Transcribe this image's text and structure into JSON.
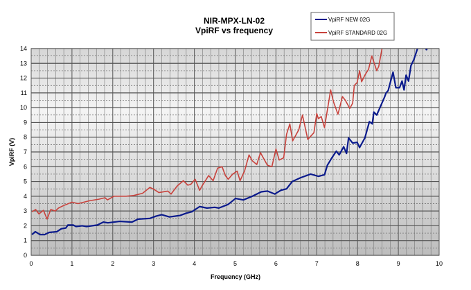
{
  "chart_data": {
    "type": "line",
    "title": "NIR-MPX-LN-02",
    "subtitle": "VpiRF vs frequency",
    "xlabel": "Frequency (GHz)",
    "ylabel": "VpiRF (V)",
    "xlim": [
      0,
      10
    ],
    "ylim": [
      0,
      14
    ],
    "xticks": [
      0,
      1,
      2,
      3,
      4,
      5,
      6,
      7,
      8,
      9,
      10
    ],
    "yticks": [
      0,
      1,
      2,
      3,
      4,
      5,
      6,
      7,
      8,
      9,
      10,
      11,
      12,
      13,
      14
    ],
    "grid": true,
    "legend_position": "top-right",
    "series": [
      {
        "name": "VpiRF NEW 02G",
        "color": "#0a1a8c",
        "points": [
          [
            0.02,
            1.4
          ],
          [
            0.1,
            1.6
          ],
          [
            0.22,
            1.4
          ],
          [
            0.33,
            1.4
          ],
          [
            0.44,
            1.55
          ],
          [
            0.63,
            1.6
          ],
          [
            0.74,
            1.8
          ],
          [
            0.85,
            1.85
          ],
          [
            0.9,
            2.05
          ],
          [
            1.03,
            2.05
          ],
          [
            1.1,
            1.95
          ],
          [
            1.25,
            2.0
          ],
          [
            1.36,
            1.95
          ],
          [
            1.62,
            2.05
          ],
          [
            1.77,
            2.25
          ],
          [
            1.88,
            2.2
          ],
          [
            2.17,
            2.3
          ],
          [
            2.47,
            2.25
          ],
          [
            2.62,
            2.45
          ],
          [
            2.91,
            2.5
          ],
          [
            3.06,
            2.65
          ],
          [
            3.2,
            2.75
          ],
          [
            3.39,
            2.6
          ],
          [
            3.65,
            2.7
          ],
          [
            3.8,
            2.85
          ],
          [
            3.94,
            2.95
          ],
          [
            4.13,
            3.3
          ],
          [
            4.31,
            3.2
          ],
          [
            4.5,
            3.25
          ],
          [
            4.6,
            3.2
          ],
          [
            4.83,
            3.45
          ],
          [
            5.01,
            3.85
          ],
          [
            5.2,
            3.75
          ],
          [
            5.42,
            4.0
          ],
          [
            5.64,
            4.3
          ],
          [
            5.79,
            4.35
          ],
          [
            5.97,
            4.15
          ],
          [
            6.12,
            4.4
          ],
          [
            6.26,
            4.5
          ],
          [
            6.4,
            5.0
          ],
          [
            6.6,
            5.25
          ],
          [
            6.85,
            5.5
          ],
          [
            7.04,
            5.35
          ],
          [
            7.19,
            5.45
          ],
          [
            7.26,
            6.1
          ],
          [
            7.37,
            6.6
          ],
          [
            7.48,
            7.05
          ],
          [
            7.55,
            6.8
          ],
          [
            7.66,
            7.35
          ],
          [
            7.73,
            6.9
          ],
          [
            7.78,
            7.95
          ],
          [
            7.88,
            7.6
          ],
          [
            7.99,
            7.65
          ],
          [
            8.05,
            7.3
          ],
          [
            8.18,
            7.95
          ],
          [
            8.29,
            9.05
          ],
          [
            8.36,
            8.9
          ],
          [
            8.4,
            9.7
          ],
          [
            8.47,
            9.5
          ],
          [
            8.66,
            10.7
          ],
          [
            8.7,
            11.0
          ],
          [
            8.75,
            11.15
          ],
          [
            8.87,
            12.4
          ],
          [
            8.94,
            11.35
          ],
          [
            9.03,
            11.35
          ],
          [
            9.09,
            11.8
          ],
          [
            9.14,
            11.2
          ],
          [
            9.19,
            12.2
          ],
          [
            9.25,
            11.8
          ],
          [
            9.31,
            12.85
          ],
          [
            9.38,
            13.25
          ],
          [
            9.47,
            14.0
          ]
        ],
        "isolated_points": [
          [
            9.69,
            13.95
          ]
        ]
      },
      {
        "name": "VpiRF STANDARD 02G",
        "color": "#c8423c",
        "points": [
          [
            0.02,
            2.95
          ],
          [
            0.11,
            3.1
          ],
          [
            0.19,
            2.8
          ],
          [
            0.3,
            3.05
          ],
          [
            0.39,
            2.45
          ],
          [
            0.48,
            3.1
          ],
          [
            0.59,
            3.0
          ],
          [
            0.67,
            3.2
          ],
          [
            0.78,
            3.35
          ],
          [
            1.0,
            3.6
          ],
          [
            1.15,
            3.5
          ],
          [
            1.44,
            3.7
          ],
          [
            1.66,
            3.8
          ],
          [
            1.81,
            3.9
          ],
          [
            1.87,
            3.75
          ],
          [
            2.03,
            4.0
          ],
          [
            2.33,
            4.0
          ],
          [
            2.51,
            4.05
          ],
          [
            2.73,
            4.2
          ],
          [
            2.91,
            4.6
          ],
          [
            3.02,
            4.45
          ],
          [
            3.13,
            4.25
          ],
          [
            3.35,
            4.35
          ],
          [
            3.43,
            4.15
          ],
          [
            3.58,
            4.7
          ],
          [
            3.73,
            5.05
          ],
          [
            3.84,
            4.75
          ],
          [
            3.91,
            4.8
          ],
          [
            4.02,
            5.15
          ],
          [
            4.13,
            4.4
          ],
          [
            4.2,
            4.75
          ],
          [
            4.35,
            5.4
          ],
          [
            4.46,
            5.05
          ],
          [
            4.57,
            5.9
          ],
          [
            4.68,
            6.0
          ],
          [
            4.76,
            5.4
          ],
          [
            4.83,
            5.15
          ],
          [
            4.94,
            5.5
          ],
          [
            5.05,
            5.7
          ],
          [
            5.12,
            5.05
          ],
          [
            5.23,
            5.7
          ],
          [
            5.34,
            6.8
          ],
          [
            5.42,
            6.4
          ],
          [
            5.53,
            6.15
          ],
          [
            5.62,
            6.95
          ],
          [
            5.79,
            6.1
          ],
          [
            5.9,
            6.0
          ],
          [
            6.0,
            7.2
          ],
          [
            6.08,
            6.45
          ],
          [
            6.19,
            6.6
          ],
          [
            6.26,
            8.2
          ],
          [
            6.34,
            8.9
          ],
          [
            6.41,
            7.75
          ],
          [
            6.56,
            8.5
          ],
          [
            6.65,
            9.5
          ],
          [
            6.78,
            7.85
          ],
          [
            6.93,
            8.3
          ],
          [
            7.0,
            9.6
          ],
          [
            7.04,
            9.25
          ],
          [
            7.11,
            9.4
          ],
          [
            7.19,
            8.65
          ],
          [
            7.3,
            10.5
          ],
          [
            7.34,
            11.2
          ],
          [
            7.41,
            10.4
          ],
          [
            7.52,
            9.55
          ],
          [
            7.63,
            10.75
          ],
          [
            7.7,
            10.5
          ],
          [
            7.81,
            9.95
          ],
          [
            7.88,
            10.3
          ],
          [
            7.92,
            11.5
          ],
          [
            7.99,
            11.7
          ],
          [
            8.05,
            12.5
          ],
          [
            8.1,
            11.75
          ],
          [
            8.18,
            12.2
          ],
          [
            8.27,
            12.6
          ],
          [
            8.35,
            13.5
          ],
          [
            8.47,
            12.5
          ],
          [
            8.52,
            12.8
          ],
          [
            8.6,
            14.0
          ]
        ]
      }
    ]
  }
}
